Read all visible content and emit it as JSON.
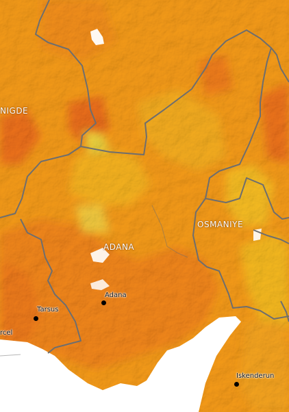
{
  "map": {
    "palette": {
      "base": "#f39a1a",
      "deep_orange": "#ee7a1c",
      "red_orange": "#e8601e",
      "yellow": "#f5c526",
      "light_yellow": "#e8e04a",
      "sea": "#ffffff",
      "border": "#6e6e6e"
    },
    "regions": [
      {
        "id": "nigde",
        "label": "NIGDE"
      },
      {
        "id": "adana",
        "label": "ADANA"
      },
      {
        "id": "osmaniye",
        "label": "OSMANIYE"
      }
    ],
    "cities": [
      {
        "id": "tarsus",
        "label": "Tarsus"
      },
      {
        "id": "adana",
        "label": "Adana"
      },
      {
        "id": "iskenderun",
        "label": "Iskenderun"
      },
      {
        "id": "mersin",
        "label": "rcel"
      }
    ]
  }
}
